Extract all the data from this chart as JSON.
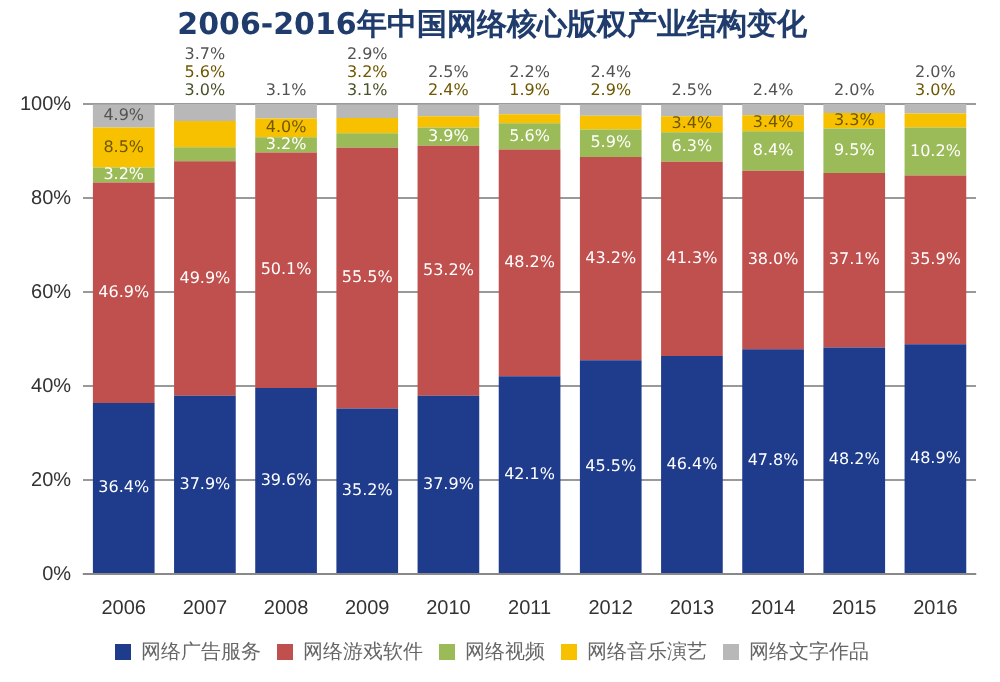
{
  "chart_data": {
    "type": "bar",
    "stacked": true,
    "title": "2006-2016年中国网络核心版权产业结构变化",
    "categories": [
      "2006",
      "2007",
      "2008",
      "2009",
      "2010",
      "2011",
      "2012",
      "2013",
      "2014",
      "2015",
      "2016"
    ],
    "ylim": [
      0,
      100
    ],
    "yticks": [
      {
        "value": 0,
        "label": "0%"
      },
      {
        "value": 20,
        "label": "20%"
      },
      {
        "value": 40,
        "label": "40%"
      },
      {
        "value": 60,
        "label": "60%"
      },
      {
        "value": 80,
        "label": "80%"
      },
      {
        "value": 100,
        "label": "100%"
      }
    ],
    "grid": "y",
    "legend": "bottom",
    "series": [
      {
        "name": "网络广告服务",
        "color": "#1f3c8c",
        "values": [
          36.4,
          37.9,
          39.6,
          35.2,
          37.9,
          42.1,
          45.5,
          46.4,
          47.8,
          48.2,
          48.9
        ],
        "value_labels": [
          "36.4%",
          "37.9%",
          "39.6%",
          "35.2%",
          "37.9%",
          "42.1%",
          "45.5%",
          "46.4%",
          "47.8%",
          "48.2%",
          "48.9%"
        ]
      },
      {
        "name": "网络游戏软件",
        "color": "#c0504d",
        "values": [
          46.9,
          49.9,
          50.1,
          55.5,
          53.2,
          48.2,
          43.2,
          41.3,
          38.0,
          37.1,
          35.9
        ],
        "value_labels": [
          "46.9%",
          "49.9%",
          "50.1%",
          "55.5%",
          "53.2%",
          "48.2%",
          "43.2%",
          "41.3%",
          "38.0%",
          "37.1%",
          "35.9%"
        ]
      },
      {
        "name": "网络视频",
        "color": "#9bbb59",
        "values": [
          3.2,
          3.0,
          3.2,
          3.1,
          3.9,
          5.6,
          5.9,
          6.3,
          8.4,
          9.5,
          10.2
        ],
        "value_labels": [
          "3.2%",
          "3.0%",
          "3.2%",
          "3.1%",
          "3.9%",
          "5.6%",
          "5.9%",
          "6.3%",
          "8.4%",
          "9.5%",
          "10.2%"
        ]
      },
      {
        "name": "网络音乐演艺",
        "color": "#f7c100",
        "values": [
          8.5,
          5.6,
          4.0,
          3.2,
          2.4,
          1.9,
          2.9,
          3.4,
          3.4,
          3.3,
          3.0
        ],
        "value_labels": [
          "8.5%",
          "5.6%",
          "4.0%",
          "3.2%",
          "2.4%",
          "1.9%",
          "2.9%",
          "3.4%",
          "3.4%",
          "3.3%",
          "3.0%"
        ]
      },
      {
        "name": "网络文字作品",
        "color": "#b8b8b8",
        "values": [
          4.9,
          3.7,
          3.1,
          2.9,
          2.5,
          2.2,
          2.4,
          2.5,
          2.4,
          2.0,
          2.0
        ],
        "value_labels": [
          "4.9%",
          "3.7%",
          "3.1%",
          "2.9%",
          "2.5%",
          "2.2%",
          "2.4%",
          "2.5%",
          "2.4%",
          "2.0%",
          "2.0%"
        ]
      }
    ]
  }
}
